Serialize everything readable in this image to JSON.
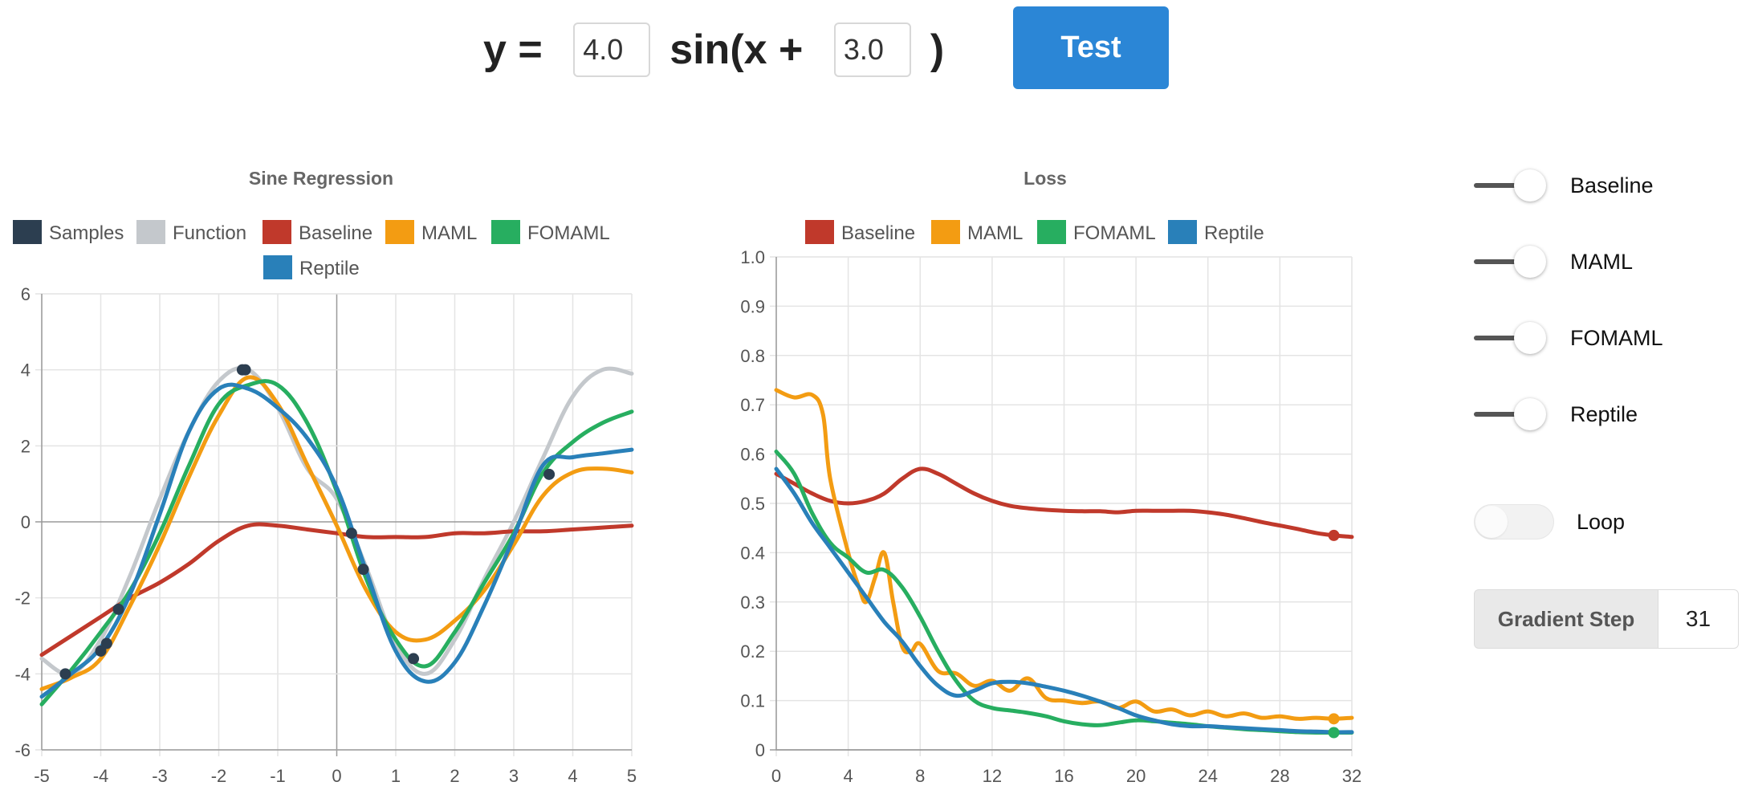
{
  "equation": {
    "prefix": "y = ",
    "amplitude": "4.0",
    "middle": "sin(x + ",
    "phase": "3.0",
    "suffix": ")"
  },
  "test_button": {
    "label": "Test"
  },
  "colors": {
    "samples": "#2c3e50",
    "function": "#c4c8cc",
    "baseline": "#c0392b",
    "maml": "#f39c12",
    "fomaml": "#27ae60",
    "reptile": "#2980b9",
    "grid": "#e4e4e4",
    "axis": "#9a9a9a"
  },
  "controls": {
    "toggles": [
      {
        "label": "Baseline",
        "state": "on"
      },
      {
        "label": "MAML",
        "state": "on"
      },
      {
        "label": "FOMAML",
        "state": "on"
      },
      {
        "label": "Reptile",
        "state": "on"
      }
    ],
    "loop": {
      "label": "Loop",
      "state": "off"
    },
    "gradient_step": {
      "label": "Gradient Step",
      "value": "31"
    }
  },
  "chart_data": [
    {
      "type": "line",
      "title": "Sine Regression",
      "legend": [
        "Samples",
        "Function",
        "Baseline",
        "MAML",
        "FOMAML",
        "Reptile"
      ],
      "legend_placement": "top",
      "grid": true,
      "xlim": [
        -5,
        5
      ],
      "ylim": [
        -6,
        6
      ],
      "x_ticks": [
        -5,
        -4,
        -3,
        -2,
        -1,
        0,
        1,
        2,
        3,
        4,
        5
      ],
      "y_ticks": [
        -6,
        -4,
        -2,
        0,
        2,
        4,
        6
      ],
      "series": [
        {
          "name": "Function",
          "color": "#c4c8cc",
          "x": [
            -5,
            -4.5,
            -4,
            -3.5,
            -3,
            -2.5,
            -2,
            -1.5,
            -1,
            -0.5,
            0,
            0.5,
            1,
            1.5,
            2,
            2.5,
            3,
            3.5,
            4,
            4.5,
            5
          ],
          "y": [
            -3.6,
            -4.0,
            -3.1,
            -1.4,
            0.6,
            2.4,
            3.7,
            4.0,
            3.0,
            1.4,
            0.6,
            -1.2,
            -3.2,
            -4.0,
            -3.1,
            -1.5,
            0.0,
            1.7,
            3.3,
            4.0,
            3.9
          ]
        },
        {
          "name": "Baseline",
          "color": "#c0392b",
          "x": [
            -5,
            -4.5,
            -4,
            -3.5,
            -3,
            -2.5,
            -2,
            -1.5,
            -1,
            -0.5,
            0,
            0.5,
            1,
            1.5,
            2,
            2.5,
            3,
            3.5,
            4,
            4.5,
            5
          ],
          "y": [
            -3.5,
            -3.0,
            -2.5,
            -2.0,
            -1.6,
            -1.1,
            -0.5,
            -0.1,
            -0.1,
            -0.2,
            -0.3,
            -0.4,
            -0.4,
            -0.4,
            -0.3,
            -0.3,
            -0.25,
            -0.25,
            -0.2,
            -0.15,
            -0.1
          ]
        },
        {
          "name": "MAML",
          "color": "#f39c12",
          "x": [
            -5,
            -4.5,
            -4,
            -3.5,
            -3,
            -2.5,
            -2,
            -1.5,
            -1,
            -0.5,
            0,
            0.5,
            1,
            1.5,
            2,
            2.5,
            3,
            3.5,
            4,
            4.5,
            5
          ],
          "y": [
            -4.4,
            -4.1,
            -3.6,
            -2.2,
            -0.6,
            1.2,
            2.8,
            3.8,
            3.1,
            1.5,
            -0.1,
            -1.8,
            -2.9,
            -3.1,
            -2.6,
            -1.8,
            -0.6,
            0.7,
            1.3,
            1.4,
            1.3
          ]
        },
        {
          "name": "FOMAML",
          "color": "#27ae60",
          "x": [
            -5,
            -4.5,
            -4,
            -3.5,
            -3,
            -2.5,
            -2,
            -1.5,
            -1,
            -0.5,
            0,
            0.5,
            1,
            1.5,
            2,
            2.5,
            3,
            3.5,
            4,
            4.5,
            5
          ],
          "y": [
            -4.8,
            -3.9,
            -2.9,
            -1.8,
            -0.3,
            1.5,
            3.1,
            3.6,
            3.6,
            2.6,
            0.8,
            -1.5,
            -3.1,
            -3.8,
            -2.9,
            -1.6,
            -0.3,
            1.3,
            2.1,
            2.6,
            2.9
          ]
        },
        {
          "name": "Reptile",
          "color": "#2980b9",
          "x": [
            -5,
            -4.5,
            -4,
            -3.5,
            -3,
            -2.5,
            -2,
            -1.5,
            -1,
            -0.5,
            0,
            0.5,
            1,
            1.5,
            2,
            2.5,
            3,
            3.5,
            4,
            4.5,
            5
          ],
          "y": [
            -4.6,
            -4.0,
            -3.3,
            -1.9,
            0.2,
            2.4,
            3.5,
            3.5,
            3.0,
            2.2,
            0.9,
            -1.3,
            -3.4,
            -4.2,
            -3.7,
            -2.2,
            -0.4,
            1.5,
            1.7,
            1.8,
            1.9
          ]
        }
      ],
      "samples": {
        "name": "Samples",
        "color": "#2c3e50",
        "x": [
          -4.6,
          -4.0,
          -3.9,
          -3.7,
          -1.6,
          -1.55,
          0.25,
          0.45,
          1.3,
          3.6
        ],
        "y": [
          -4.0,
          -3.4,
          -3.2,
          -2.3,
          4.0,
          4.0,
          -0.3,
          -1.25,
          -3.6,
          1.25
        ]
      }
    },
    {
      "type": "line",
      "title": "Loss",
      "legend": [
        "Baseline",
        "MAML",
        "FOMAML",
        "Reptile"
      ],
      "legend_placement": "top",
      "grid": true,
      "xlim": [
        0,
        32
      ],
      "ylim": [
        0,
        1.0
      ],
      "x_ticks": [
        0,
        4,
        8,
        12,
        16,
        20,
        24,
        28,
        32
      ],
      "y_ticks": [
        0,
        0.1,
        0.2,
        0.3,
        0.4,
        0.5,
        0.6,
        0.7,
        0.8,
        0.9,
        1.0
      ],
      "series": [
        {
          "name": "Baseline",
          "color": "#c0392b",
          "x": [
            0,
            1,
            2,
            3,
            4,
            5,
            6,
            7,
            8,
            9,
            10,
            11,
            12,
            13,
            14,
            15,
            16,
            17,
            18,
            19,
            20,
            21,
            22,
            23,
            24,
            25,
            26,
            27,
            28,
            29,
            30,
            31,
            32
          ],
          "y": [
            0.56,
            0.54,
            0.52,
            0.505,
            0.5,
            0.505,
            0.52,
            0.55,
            0.57,
            0.56,
            0.54,
            0.52,
            0.505,
            0.495,
            0.49,
            0.487,
            0.485,
            0.484,
            0.484,
            0.482,
            0.485,
            0.485,
            0.485,
            0.485,
            0.482,
            0.477,
            0.47,
            0.462,
            0.455,
            0.448,
            0.44,
            0.435,
            0.432
          ]
        },
        {
          "name": "MAML",
          "color": "#f39c12",
          "x": [
            0,
            1,
            2,
            2.6,
            3,
            4,
            4.6,
            5,
            5.5,
            6,
            6.5,
            7,
            7.5,
            8,
            9,
            10,
            11,
            12,
            13,
            14,
            15,
            16,
            17,
            18,
            19,
            20,
            21,
            22,
            23,
            24,
            25,
            26,
            27,
            28,
            29,
            30,
            31,
            32
          ],
          "y": [
            0.73,
            0.715,
            0.72,
            0.68,
            0.55,
            0.4,
            0.33,
            0.3,
            0.35,
            0.4,
            0.3,
            0.21,
            0.2,
            0.215,
            0.16,
            0.155,
            0.13,
            0.14,
            0.12,
            0.145,
            0.105,
            0.1,
            0.095,
            0.098,
            0.085,
            0.098,
            0.078,
            0.082,
            0.07,
            0.078,
            0.068,
            0.074,
            0.065,
            0.068,
            0.063,
            0.065,
            0.063,
            0.065
          ]
        },
        {
          "name": "FOMAML",
          "color": "#27ae60",
          "x": [
            0,
            1,
            2,
            3,
            4,
            5,
            6,
            7,
            8,
            9,
            10,
            11,
            12,
            13,
            14,
            15,
            16,
            17,
            18,
            19,
            20,
            21,
            22,
            23,
            24,
            25,
            26,
            27,
            28,
            29,
            30,
            31,
            32
          ],
          "y": [
            0.605,
            0.56,
            0.48,
            0.42,
            0.39,
            0.36,
            0.365,
            0.33,
            0.27,
            0.2,
            0.14,
            0.1,
            0.085,
            0.08,
            0.075,
            0.068,
            0.058,
            0.052,
            0.05,
            0.055,
            0.06,
            0.058,
            0.055,
            0.052,
            0.048,
            0.045,
            0.042,
            0.04,
            0.038,
            0.036,
            0.035,
            0.035,
            0.035
          ]
        },
        {
          "name": "Reptile",
          "color": "#2980b9",
          "x": [
            0,
            1,
            2,
            3,
            4,
            5,
            6,
            7,
            8,
            9,
            10,
            11,
            12,
            13,
            14,
            15,
            16,
            17,
            18,
            19,
            20,
            21,
            22,
            23,
            24,
            25,
            26,
            27,
            28,
            29,
            30,
            31,
            32
          ],
          "y": [
            0.57,
            0.52,
            0.46,
            0.41,
            0.36,
            0.31,
            0.26,
            0.22,
            0.17,
            0.13,
            0.11,
            0.12,
            0.135,
            0.138,
            0.135,
            0.128,
            0.12,
            0.11,
            0.098,
            0.085,
            0.07,
            0.06,
            0.052,
            0.048,
            0.048,
            0.046,
            0.044,
            0.042,
            0.04,
            0.038,
            0.037,
            0.036,
            0.036
          ]
        }
      ],
      "end_markers": [
        {
          "series": "Baseline",
          "x": 31,
          "y": 0.435
        },
        {
          "series": "MAML",
          "x": 31,
          "y": 0.063
        },
        {
          "series": "FOMAML",
          "x": 31,
          "y": 0.035
        }
      ]
    }
  ]
}
